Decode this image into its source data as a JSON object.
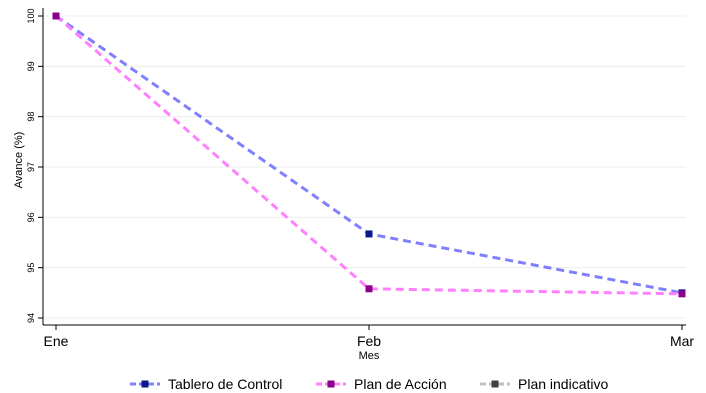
{
  "chart_data": {
    "type": "line",
    "title": "",
    "xlabel": "Mes",
    "ylabel": "Avance (%)",
    "categories": [
      "Ene",
      "Feb",
      "Mar"
    ],
    "ylim": [
      94,
      100
    ],
    "yticks": [
      94,
      95,
      96,
      97,
      98,
      99,
      100
    ],
    "grid": "horizontal",
    "legend_position": "bottom",
    "series": [
      {
        "name": "Tablero de Control",
        "values": [
          100,
          95.67,
          94.5
        ],
        "line_color": "#8080ff",
        "marker_color": "#0a1a8c",
        "line_style": "dashed"
      },
      {
        "name": "Plan de Acción",
        "values": [
          100,
          94.58,
          94.48
        ],
        "line_color": "#ff80ff",
        "marker_color": "#8b008b",
        "line_style": "dashed"
      },
      {
        "name": "Plan indicativo",
        "values": [
          null,
          null,
          null
        ],
        "line_color": "#bfbfbf",
        "marker_color": "#404040",
        "line_style": "dashed"
      }
    ]
  }
}
